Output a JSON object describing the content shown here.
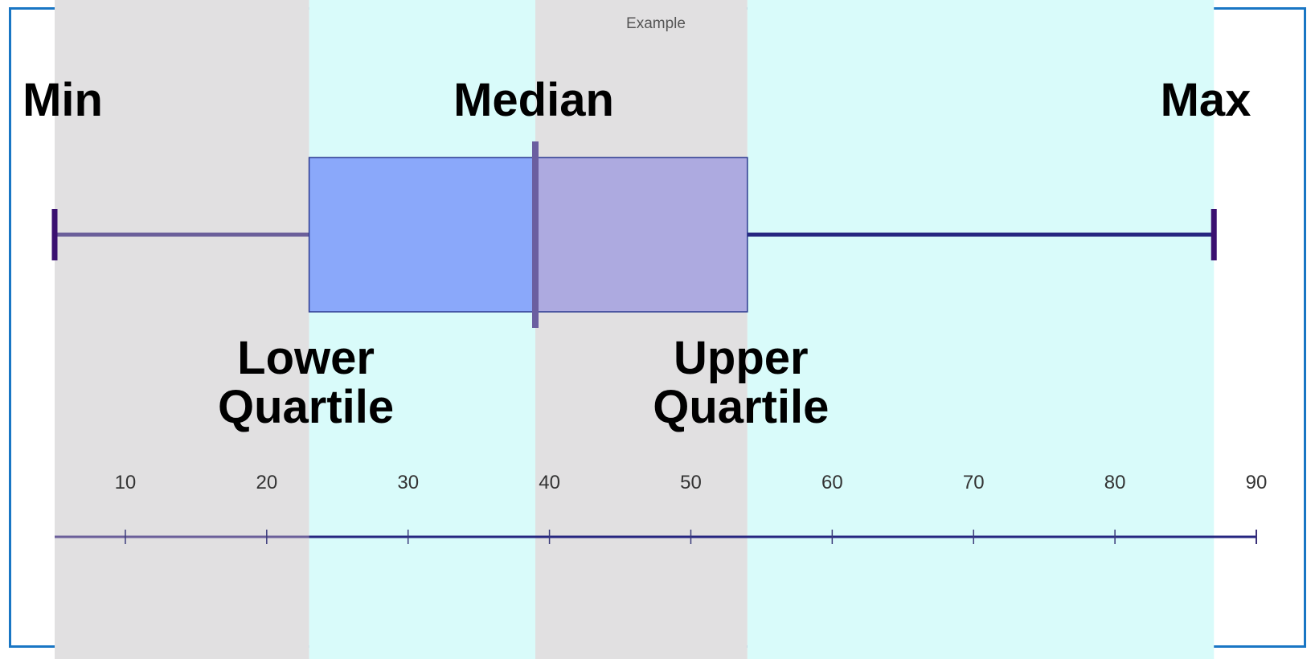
{
  "chart_data": {
    "type": "boxplot",
    "title": "Example",
    "min": 5,
    "lower_quartile": 23,
    "median": 39,
    "upper_quartile": 54,
    "max": 87,
    "axis": {
      "min": 5,
      "max": 90,
      "ticks": [
        10,
        20,
        30,
        40,
        50,
        60,
        70,
        80,
        90
      ]
    },
    "annotations": {
      "min": "Min",
      "median": "Median",
      "max": "Max",
      "lower_quartile": [
        "Lower",
        "Quartile"
      ],
      "upper_quartile": [
        "Upper",
        "Quartile"
      ]
    },
    "colors": {
      "band_gray": "#e1e0e1",
      "band_cyan": "#d9fbfa",
      "box_lower": "#8aa8fa",
      "box_upper": "#adaae0",
      "box_stroke": "#2c3a8f",
      "median_line": "#6b5fa0",
      "whisker_left": "#6b5f9a",
      "whisker_right": "#262680",
      "cap": "#3a1070",
      "frame": "#1976c4"
    },
    "grid": false,
    "legend": "none"
  }
}
